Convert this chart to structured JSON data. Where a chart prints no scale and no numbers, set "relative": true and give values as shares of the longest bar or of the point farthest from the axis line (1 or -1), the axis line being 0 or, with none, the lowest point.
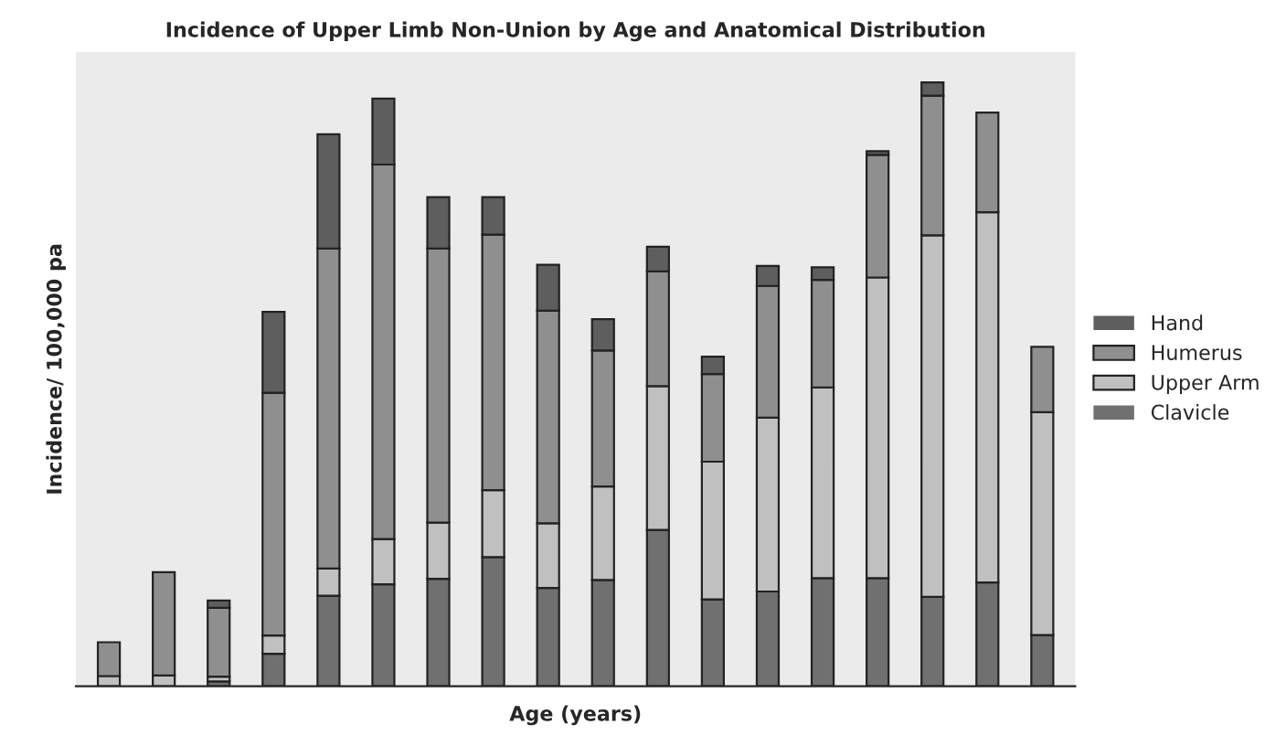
{
  "chart_data": {
    "type": "bar",
    "title": "Incidence of Upper Limb Non-Union by Age and Anatomical Distribution",
    "xlabel": "Age (years)",
    "ylabel": "Incidence/ 100,000 pa",
    "relative": true,
    "stacked": true,
    "legend": "right",
    "categories": [
      null,
      null,
      null,
      null,
      null,
      null,
      null,
      null,
      null,
      null,
      null,
      null,
      null,
      null,
      null,
      null,
      null,
      null
    ],
    "series": [
      {
        "name": "Clavicle",
        "color": "#707070",
        "values": [
          0,
          0,
          0.008,
          0.054,
          0.15,
          0.169,
          0.178,
          0.214,
          0.163,
          0.176,
          0.259,
          0.144,
          0.157,
          0.179,
          0.179,
          0.148,
          0.172,
          0.085
        ]
      },
      {
        "name": "Upper Arm",
        "color": "#c0c0c0",
        "values": [
          0.017,
          0.018,
          0.008,
          0.03,
          0.045,
          0.075,
          0.093,
          0.111,
          0.107,
          0.155,
          0.238,
          0.228,
          0.288,
          0.316,
          0.498,
          0.599,
          0.613,
          0.369
        ]
      },
      {
        "name": "Humerus",
        "color": "#8f8f8f",
        "values": [
          0.056,
          0.171,
          0.114,
          0.402,
          0.53,
          0.62,
          0.454,
          0.423,
          0.352,
          0.225,
          0.19,
          0.145,
          0.218,
          0.178,
          0.203,
          0.231,
          0.165,
          0.108
        ]
      },
      {
        "name": "Hand",
        "color": "#5e5e5e",
        "values": [
          0,
          0,
          0.012,
          0.134,
          0.189,
          0.109,
          0.085,
          0.062,
          0.076,
          0.052,
          0.041,
          0.029,
          0.033,
          0.021,
          0.006,
          0.022,
          0,
          0
        ]
      }
    ]
  }
}
